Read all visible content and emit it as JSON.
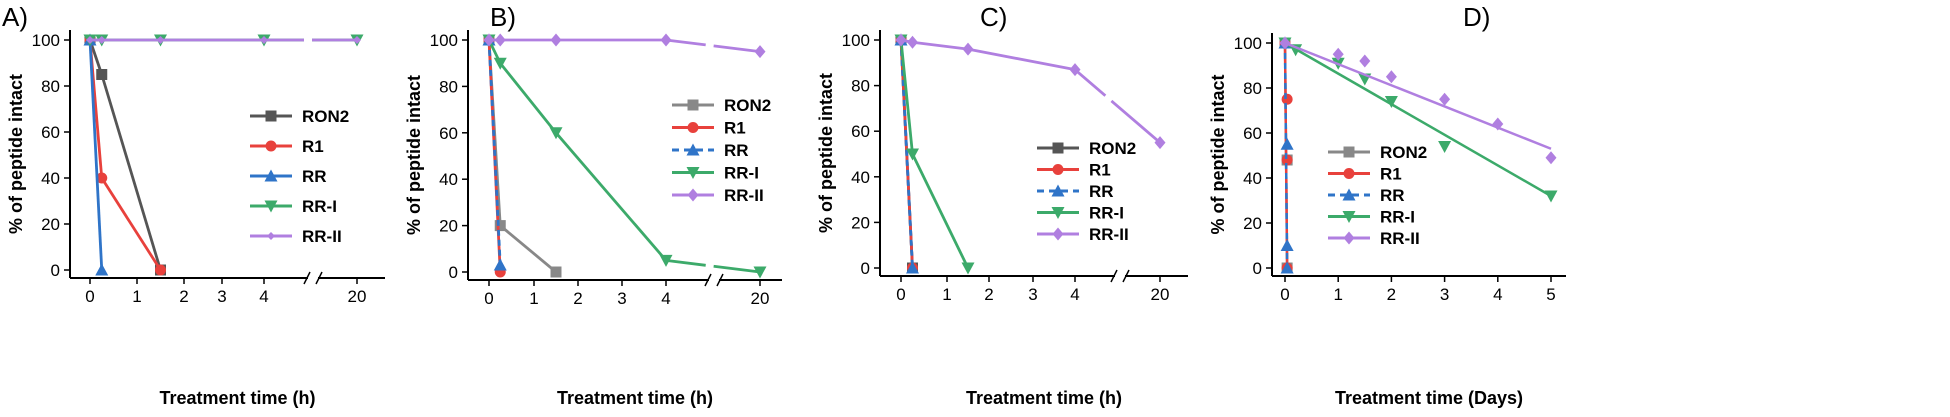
{
  "chart_data": [
    {
      "type": "line",
      "panel": "A)",
      "xlabel": "Treatment time (h)",
      "ylabel": "% of peptide intact",
      "ylim": [
        0,
        100
      ],
      "yticks": [
        0,
        20,
        40,
        60,
        80,
        100
      ],
      "xticks": [
        "0",
        "1",
        "2",
        "3",
        "4",
        "20"
      ],
      "axis_break": "between 4 and 20",
      "legend_position": "center-right",
      "series": [
        {
          "name": "RON2",
          "color": "#555555",
          "marker": "square",
          "dashed": false,
          "x": [
            0,
            0.25,
            1.5
          ],
          "y": [
            100,
            85,
            0
          ]
        },
        {
          "name": "R1",
          "color": "#e8413c",
          "marker": "circle",
          "dashed": false,
          "x": [
            0,
            0.25,
            1.5
          ],
          "y": [
            100,
            40,
            0
          ]
        },
        {
          "name": "RR",
          "color": "#2f74c8",
          "marker": "triangle-up",
          "dashed": false,
          "x": [
            0,
            0.25
          ],
          "y": [
            100,
            0
          ]
        },
        {
          "name": "RR-I",
          "color": "#3caa6a",
          "marker": "triangle-down",
          "dashed": false,
          "x": [
            0,
            0.25,
            1.5,
            4,
            20
          ],
          "y": [
            100,
            100,
            100,
            100,
            100
          ]
        },
        {
          "name": "RR-II",
          "color": "#b07fe0",
          "marker": "diamond-small",
          "dashed": false,
          "x": [
            0,
            0.25,
            1.5,
            4,
            20
          ],
          "y": [
            100,
            100,
            100,
            100,
            100
          ]
        }
      ]
    },
    {
      "type": "line",
      "panel": "B)",
      "xlabel": "Treatment time (h)",
      "ylabel": "% of peptide intact",
      "ylim": [
        0,
        100
      ],
      "yticks": [
        0,
        20,
        40,
        60,
        80,
        100
      ],
      "xticks": [
        "0",
        "1",
        "2",
        "3",
        "4",
        "20"
      ],
      "axis_break": "between 4 and 20",
      "legend_position": "center-right",
      "series": [
        {
          "name": "RON2",
          "color": "#888888",
          "marker": "square",
          "dashed": false,
          "x": [
            0,
            0.25,
            1.5
          ],
          "y": [
            100,
            20,
            0
          ]
        },
        {
          "name": "R1",
          "color": "#e8413c",
          "marker": "circle",
          "dashed": false,
          "x": [
            0,
            0.25
          ],
          "y": [
            100,
            0
          ]
        },
        {
          "name": "RR",
          "color": "#2f74c8",
          "marker": "triangle-up",
          "dashed": true,
          "x": [
            0,
            0.25
          ],
          "y": [
            100,
            3
          ]
        },
        {
          "name": "RR-I",
          "color": "#3caa6a",
          "marker": "triangle-down",
          "dashed": false,
          "x": [
            0,
            0.25,
            1.5,
            4,
            20
          ],
          "y": [
            100,
            90,
            60,
            5,
            0
          ]
        },
        {
          "name": "RR-II",
          "color": "#b07fe0",
          "marker": "diamond",
          "dashed": false,
          "x": [
            0,
            0.25,
            1.5,
            4,
            20
          ],
          "y": [
            100,
            100,
            100,
            100,
            95
          ]
        }
      ]
    },
    {
      "type": "line",
      "panel": "C)",
      "xlabel": "Treatment time (h)",
      "ylabel": "% of peptide intact",
      "ylim": [
        0,
        100
      ],
      "yticks": [
        0,
        20,
        40,
        60,
        80,
        100
      ],
      "xticks": [
        "0",
        "1",
        "2",
        "3",
        "4",
        "20"
      ],
      "axis_break": "between 4 and 20",
      "legend_position": "bottom-right",
      "series": [
        {
          "name": "RON2",
          "color": "#555555",
          "marker": "square",
          "dashed": false,
          "x": [
            0,
            0.25
          ],
          "y": [
            100,
            0
          ]
        },
        {
          "name": "R1",
          "color": "#e8413c",
          "marker": "circle",
          "dashed": false,
          "x": [
            0,
            0.25
          ],
          "y": [
            100,
            0
          ]
        },
        {
          "name": "RR",
          "color": "#2f74c8",
          "marker": "triangle-up",
          "dashed": true,
          "x": [
            0,
            0.25
          ],
          "y": [
            100,
            0
          ]
        },
        {
          "name": "RR-I",
          "color": "#3caa6a",
          "marker": "triangle-down",
          "dashed": false,
          "x": [
            0,
            0.25,
            1.5
          ],
          "y": [
            100,
            50,
            0
          ]
        },
        {
          "name": "RR-II",
          "color": "#b07fe0",
          "marker": "diamond",
          "dashed": false,
          "x": [
            0,
            0.25,
            1.5,
            4,
            20
          ],
          "y": [
            100,
            99,
            96,
            87,
            55
          ]
        }
      ]
    },
    {
      "type": "scatter",
      "panel": "D)",
      "xlabel": "Treatment time (Days)",
      "ylabel": "% of peptide intact",
      "ylim": [
        0,
        100
      ],
      "xlim": [
        0,
        5
      ],
      "yticks": [
        0,
        20,
        40,
        60,
        80,
        100
      ],
      "xticks": [
        "0",
        "1",
        "2",
        "3",
        "4",
        "5"
      ],
      "legend_position": "bottom-left",
      "series": [
        {
          "name": "RON2",
          "color": "#888888",
          "marker": "square",
          "dashed": false,
          "x": [
            0,
            0.04,
            0.04
          ],
          "y": [
            100,
            48,
            0
          ]
        },
        {
          "name": "R1",
          "color": "#e8413c",
          "marker": "circle",
          "dashed": false,
          "x": [
            0,
            0.04,
            0.04,
            0.04
          ],
          "y": [
            100,
            75,
            48,
            0
          ]
        },
        {
          "name": "RR",
          "color": "#2f74c8",
          "marker": "triangle-up",
          "dashed": true,
          "x": [
            0,
            0.04,
            0.04,
            0.04
          ],
          "y": [
            100,
            55,
            10,
            0
          ]
        },
        {
          "name": "RR-I",
          "color": "#3caa6a",
          "marker": "triangle-down",
          "dashed": false,
          "x": [
            0,
            0.2,
            1,
            1.5,
            2,
            3,
            5
          ],
          "y": [
            100,
            97,
            91,
            84,
            74,
            54,
            32
          ],
          "fit": [
            [
              0,
              100
            ],
            [
              5,
              32
            ]
          ]
        },
        {
          "name": "RR-II",
          "color": "#b07fe0",
          "marker": "diamond",
          "dashed": false,
          "x": [
            0,
            1,
            1.5,
            2,
            3,
            4,
            5
          ],
          "y": [
            100,
            95,
            92,
            85,
            75,
            64,
            49
          ],
          "fit": [
            [
              0,
              100
            ],
            [
              5,
              53
            ]
          ]
        }
      ]
    }
  ]
}
